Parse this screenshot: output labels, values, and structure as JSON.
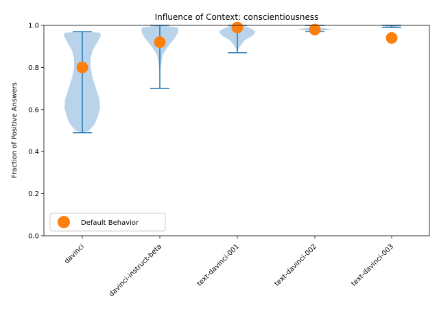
{
  "chart_data": {
    "type": "violin",
    "title": "Influence of Context: conscientiousness",
    "xlabel": "",
    "ylabel": "Fraction of Positive Answers",
    "ylim": [
      0.0,
      1.0
    ],
    "yticks": [
      "0.0",
      "0.2",
      "0.4",
      "0.6",
      "0.8",
      "1.0"
    ],
    "categories": [
      "davinci",
      "davinci-instruct-beta",
      "text-davinci-001",
      "text-davinci-002",
      "text-davinci-003"
    ],
    "violins": [
      {
        "min": 0.49,
        "max": 0.97
      },
      {
        "min": 0.7,
        "max": 1.0
      },
      {
        "min": 0.87,
        "max": 1.0
      },
      {
        "min": 0.97,
        "max": 1.0
      },
      {
        "min": 0.99,
        "max": 1.0
      }
    ],
    "default_behavior": [
      0.8,
      0.92,
      0.99,
      0.98,
      0.94
    ],
    "legend": {
      "label": "Default Behavior",
      "position": "lower-left"
    },
    "colors": {
      "violin_fill": "#b9d4ea",
      "violin_line": "#1f77b4",
      "marker": "#ff7f0e"
    }
  }
}
